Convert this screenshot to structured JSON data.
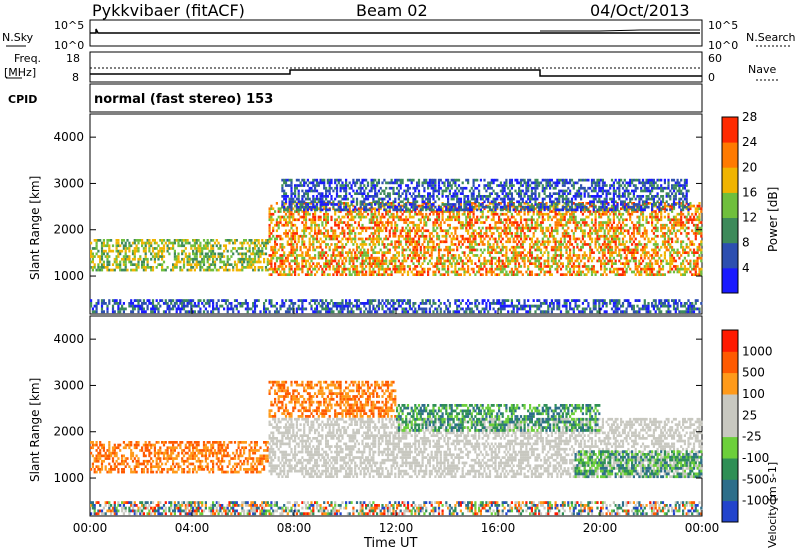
{
  "header": {
    "radar": "Pykkvibaer (fitACF)",
    "beam": "Beam 02",
    "date": "04/Oct/2013"
  },
  "top_panels": {
    "nsky_label": "N.Sky",
    "nsky_top": "10^5",
    "nsky_bottom": "10^0",
    "nsearch_label": "N.Search",
    "nsearch_top": "10^5",
    "nsearch_bottom": "10^0",
    "freq_label": "Freq.",
    "freq_unit": "[MHz]",
    "freq_top": "18",
    "freq_bottom": "8",
    "nave_label": "Nave",
    "nave_top": "60",
    "nave_bottom": "0",
    "cpid_label": "CPID",
    "cpid_text": "normal (fast stereo) 153"
  },
  "chart_data": [
    {
      "type": "heatmap",
      "title": "Power",
      "ylabel": "Slant Range [km]",
      "xlabel": "",
      "x_ticks": [
        "00:00",
        "04:00",
        "08:00",
        "12:00",
        "16:00",
        "20:00",
        "00:00"
      ],
      "y_ticks": [
        "1000",
        "2000",
        "3000",
        "4000"
      ],
      "ylim": [
        180,
        4500
      ],
      "colorbar_label": "Power [dB]",
      "colorbar_ticks": [
        "4",
        "8",
        "12",
        "16",
        "20",
        "24",
        "28"
      ],
      "colorbar_colors": [
        "#1a1aff",
        "#2d4fb0",
        "#3d8a5a",
        "#6fbf3c",
        "#f0b400",
        "#ff7a00",
        "#ff2a00"
      ],
      "bands": [
        {
          "t0": 0.0,
          "t1": 7.0,
          "r0": 1100,
          "r1": 1800,
          "level": "mid"
        },
        {
          "t0": 7.0,
          "t1": 24.0,
          "r0": 1000,
          "r1": 2600,
          "level": "high"
        },
        {
          "t0": 7.5,
          "t1": 23.5,
          "r0": 2400,
          "r1": 3100,
          "level": "low"
        },
        {
          "t0": 0.0,
          "t1": 24.0,
          "r0": 200,
          "r1": 500,
          "level": "low"
        }
      ]
    },
    {
      "type": "heatmap",
      "title": "Velocity",
      "ylabel": "Slant Range [km]",
      "xlabel": "Time UT",
      "x_ticks": [
        "00:00",
        "04:00",
        "08:00",
        "12:00",
        "16:00",
        "20:00",
        "00:00"
      ],
      "y_ticks": [
        "1000",
        "2000",
        "3000",
        "4000"
      ],
      "ylim": [
        180,
        4500
      ],
      "colorbar_label": "Velocity [m s-1]",
      "colorbar_ticks": [
        "1000",
        "500",
        "100",
        "25",
        "-25",
        "-100",
        "-500",
        "-1000"
      ],
      "colorbar_colors": [
        "#2244cc",
        "#2d6e8a",
        "#2f8f55",
        "#6ccf3a",
        "#c8c8c0",
        "#c8c8c0",
        "#ff9a1a",
        "#ff5a00",
        "#ff1a00"
      ],
      "bands": [
        {
          "t0": 0.0,
          "t1": 7.0,
          "r0": 1100,
          "r1": 1800,
          "level": "neg"
        },
        {
          "t0": 7.0,
          "t1": 12.0,
          "r0": 2300,
          "r1": 3100,
          "level": "neg"
        },
        {
          "t0": 7.0,
          "t1": 24.0,
          "r0": 1000,
          "r1": 2300,
          "level": "zero"
        },
        {
          "t0": 12.0,
          "t1": 20.0,
          "r0": 2000,
          "r1": 2600,
          "level": "pos"
        },
        {
          "t0": 19.0,
          "t1": 24.0,
          "r0": 1000,
          "r1": 1600,
          "level": "pos"
        },
        {
          "t0": 0.0,
          "t1": 24.0,
          "r0": 200,
          "r1": 500,
          "level": "mix"
        }
      ]
    }
  ]
}
